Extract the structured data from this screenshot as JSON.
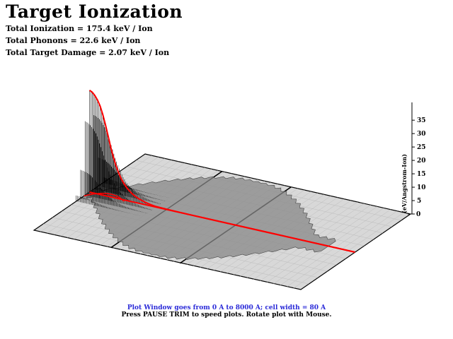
{
  "header": {
    "title": "Target Ionization",
    "stats": [
      "Total Ionization = 175.4 keV / Ion",
      "Total Phonons = 22.6 keV / Ion",
      "Total Target Damage = 2.07 keV / Ion"
    ]
  },
  "footer": {
    "line1": "Plot Window goes from 0 A to 8000 A;  cell width = 80 A",
    "line2": "Press PAUSE TRIM to speed plots.    Rotate plot with Mouse."
  },
  "colors": {
    "curve": "#ff0000",
    "surface": "#888888",
    "plane": "#d8d8d8",
    "footer_line1": "#2a2ad8"
  },
  "chart_data": {
    "type": "area",
    "title": "Target Ionization",
    "ylabel": "(eV/Angstrom-Ion)",
    "y_ticks": [
      "5",
      "10",
      "15",
      "20",
      "25",
      "30",
      "35"
    ],
    "ylim": [
      0,
      39
    ],
    "x_range_angstrom": [
      0,
      8000
    ],
    "cell_width_angstrom": 80,
    "projection": "3d",
    "series": [
      {
        "x": [
          0,
          80,
          160,
          240,
          320,
          400,
          480,
          560,
          640,
          720,
          800,
          880,
          960,
          1040,
          1120,
          1200,
          1280,
          1360,
          1440,
          1520,
          1600,
          1680,
          1760,
          1840,
          1920,
          2000,
          2400,
          3000,
          4000,
          5000,
          6000,
          7000,
          8000
        ],
        "values": [
          38,
          37.5,
          36.5,
          35,
          33,
          30,
          26.5,
          22.5,
          18.5,
          15,
          12,
          9.5,
          7.5,
          6,
          4.8,
          3.8,
          3,
          2.4,
          1.9,
          1.5,
          1.2,
          0.9,
          0.7,
          0.5,
          0.35,
          0.25,
          0.1,
          0.05,
          0.03,
          0.02,
          0.01,
          0.01,
          0
        ]
      }
    ]
  }
}
